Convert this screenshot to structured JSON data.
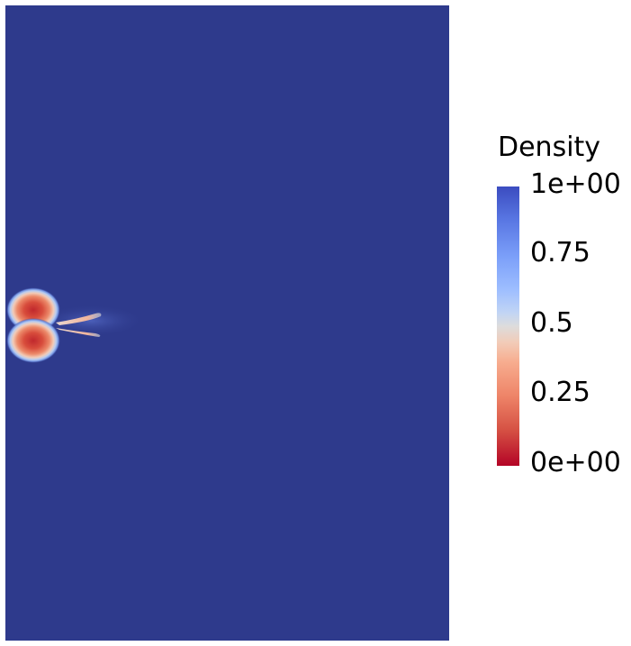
{
  "legend": {
    "title": "Density",
    "ticks": [
      "1e+00",
      "0.75",
      "0.5",
      "0.25",
      "0e+00"
    ],
    "range": [
      0,
      1
    ],
    "colormap": "coolwarm",
    "colors": {
      "high": "#3b4cc0",
      "mid": "#dddcdc",
      "low": "#b40426"
    }
  },
  "field": {
    "background_color": "#2e3a8c"
  }
}
